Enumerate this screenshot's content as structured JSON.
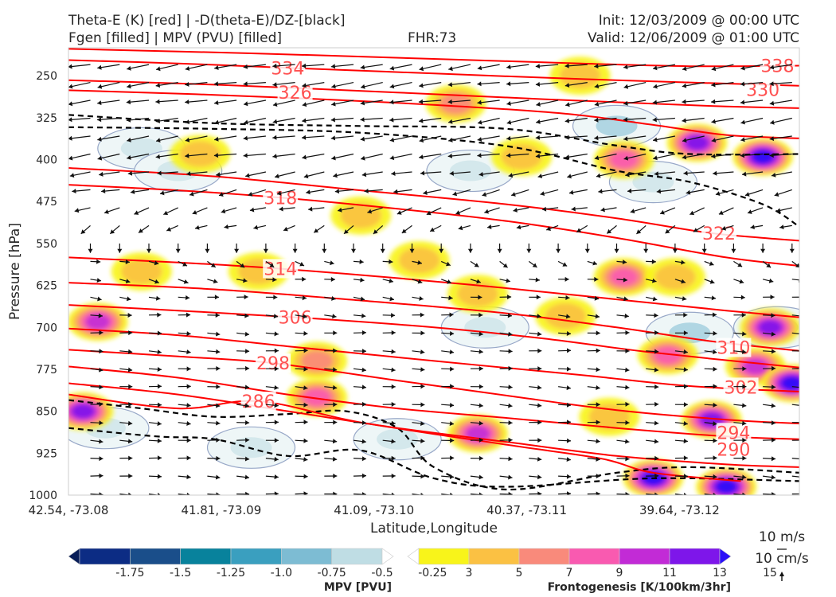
{
  "header": {
    "title_line1": "Theta-E (K) [red] | -D(theta-E)/DZ-[black]",
    "title_line2": "Fgen [filled] | MPV (PVU) [filled]",
    "fhr": "FHR:73",
    "init": "Init: 12/03/2009 @ 00:00 UTC",
    "valid": "Valid: 12/06/2009 @ 01:00 UTC"
  },
  "chart_data": {
    "type": "cross-section",
    "xlabel": "Latitude,Longitude",
    "ylabel": "Pressure [hPa]",
    "x_ticks": [
      "42.54, -73.08",
      "41.81, -73.09",
      "41.09, -73.10",
      "40.37, -73.11",
      "39.64, -73.12"
    ],
    "y_ticks": [
      250,
      325,
      400,
      475,
      550,
      625,
      700,
      775,
      850,
      925,
      1000
    ],
    "ylim": [
      1000,
      200
    ],
    "xlim": [
      0,
      1
    ],
    "theta_e_contours": [
      {
        "label": "338",
        "points": [
          [
            0,
            202
          ],
          [
            0.25,
            210
          ],
          [
            0.5,
            220
          ],
          [
            0.7,
            228
          ],
          [
            0.85,
            233
          ],
          [
            1,
            232
          ]
        ],
        "label_at": [
          0.97,
          232
        ]
      },
      {
        "label": "334",
        "points": [
          [
            0,
            222
          ],
          [
            0.15,
            228
          ],
          [
            0.3,
            236
          ],
          [
            0.5,
            246
          ],
          [
            0.7,
            256
          ],
          [
            0.85,
            262
          ],
          [
            1,
            268
          ]
        ],
        "label_at": [
          0.3,
          236
        ]
      },
      {
        "label": "330",
        "points": [
          [
            0,
            258
          ],
          [
            0.2,
            266
          ],
          [
            0.45,
            280
          ],
          [
            0.65,
            292
          ],
          [
            0.8,
            300
          ],
          [
            0.9,
            305
          ],
          [
            1,
            308
          ]
        ],
        "label_at": [
          0.95,
          275
        ]
      },
      {
        "label": "326",
        "points": [
          [
            0,
            276
          ],
          [
            0.15,
            282
          ],
          [
            0.31,
            290
          ],
          [
            0.5,
            302
          ],
          [
            0.68,
            318
          ],
          [
            0.8,
            338
          ],
          [
            0.9,
            356
          ],
          [
            1,
            362
          ]
        ],
        "label_at": [
          0.31,
          280
        ]
      },
      {
        "label": "322",
        "points": [
          [
            0,
            415
          ],
          [
            0.2,
            430
          ],
          [
            0.4,
            455
          ],
          [
            0.6,
            480
          ],
          [
            0.75,
            505
          ],
          [
            0.87,
            530
          ],
          [
            0.95,
            540
          ],
          [
            1,
            545
          ]
        ],
        "label_at": [
          0.89,
          532
        ]
      },
      {
        "label": "318",
        "points": [
          [
            0,
            445
          ],
          [
            0.15,
            455
          ],
          [
            0.29,
            468
          ],
          [
            0.45,
            488
          ],
          [
            0.6,
            510
          ],
          [
            0.75,
            540
          ],
          [
            0.9,
            575
          ],
          [
            1,
            590
          ]
        ],
        "label_at": [
          0.29,
          468
        ]
      },
      {
        "label": "314",
        "points": [
          [
            0,
            575
          ],
          [
            0.15,
            584
          ],
          [
            0.29,
            595
          ],
          [
            0.45,
            612
          ],
          [
            0.6,
            630
          ],
          [
            0.75,
            650
          ],
          [
            0.9,
            670
          ],
          [
            1,
            682
          ]
        ],
        "label_at": [
          0.29,
          595
        ]
      },
      {
        "label": "310",
        "points": [
          [
            0,
            620
          ],
          [
            0.2,
            632
          ],
          [
            0.4,
            652
          ],
          [
            0.6,
            675
          ],
          [
            0.75,
            700
          ],
          [
            0.88,
            725
          ],
          [
            1,
            742
          ]
        ],
        "label_at": [
          0.91,
          736
        ]
      },
      {
        "label": "306",
        "points": [
          [
            0,
            660
          ],
          [
            0.15,
            670
          ],
          [
            0.31,
            682
          ],
          [
            0.5,
            700
          ],
          [
            0.65,
            720
          ],
          [
            0.8,
            745
          ],
          [
            1,
            772
          ]
        ],
        "label_at": [
          0.31,
          682
        ]
      },
      {
        "label": "302",
        "points": [
          [
            0,
            702
          ],
          [
            0.15,
            714
          ],
          [
            0.3,
            734
          ],
          [
            0.5,
            760
          ],
          [
            0.7,
            785
          ],
          [
            0.85,
            805
          ],
          [
            1,
            815
          ]
        ],
        "label_at": [
          0.92,
          807
        ]
      },
      {
        "label": "298",
        "points": [
          [
            0,
            740
          ],
          [
            0.15,
            752
          ],
          [
            0.28,
            764
          ],
          [
            0.45,
            795
          ],
          [
            0.6,
            822
          ],
          [
            0.75,
            848
          ],
          [
            0.9,
            865
          ],
          [
            1,
            872
          ]
        ],
        "label_at": [
          0.28,
          764
        ]
      },
      {
        "label": "294",
        "points": [
          [
            0,
            770
          ],
          [
            0.15,
            790
          ],
          [
            0.3,
            820
          ],
          [
            0.45,
            845
          ],
          [
            0.6,
            862
          ],
          [
            0.75,
            880
          ],
          [
            0.9,
            895
          ],
          [
            1,
            900
          ]
        ],
        "label_at": [
          0.91,
          888
        ]
      },
      {
        "label": "290",
        "points": [
          [
            0,
            800
          ],
          [
            0.15,
            820
          ],
          [
            0.3,
            850
          ],
          [
            0.45,
            880
          ],
          [
            0.6,
            905
          ],
          [
            0.75,
            930
          ],
          [
            0.9,
            945
          ],
          [
            1,
            950
          ]
        ],
        "label_at": [
          0.91,
          918
        ]
      },
      {
        "label": "286",
        "points": [
          [
            0,
            820
          ],
          [
            0.15,
            845
          ],
          [
            0.26,
            832
          ],
          [
            0.4,
            870
          ],
          [
            0.6,
            910
          ],
          [
            0.73,
            935
          ],
          [
            0.8,
            960
          ],
          [
            0.92,
            975
          ]
        ],
        "label_at": [
          0.26,
          832
        ]
      }
    ],
    "stability_dashed": [
      {
        "points": [
          [
            0,
            320
          ],
          [
            0.2,
            335
          ],
          [
            0.4,
            340
          ],
          [
            0.6,
            345
          ],
          [
            0.75,
            375
          ],
          [
            0.85,
            390
          ],
          [
            1,
            390
          ]
        ]
      },
      {
        "points": [
          [
            0,
            342
          ],
          [
            0.2,
            345
          ],
          [
            0.4,
            352
          ],
          [
            0.6,
            376
          ],
          [
            0.75,
            420
          ],
          [
            0.85,
            440
          ],
          [
            0.95,
            480
          ],
          [
            1,
            520
          ]
        ]
      },
      {
        "points": [
          [
            0,
            830
          ],
          [
            0.1,
            845
          ],
          [
            0.2,
            860
          ],
          [
            0.3,
            855
          ],
          [
            0.38,
            850
          ],
          [
            0.45,
            880
          ],
          [
            0.5,
            950
          ],
          [
            0.6,
            990
          ],
          [
            0.75,
            960
          ],
          [
            0.85,
            950
          ],
          [
            1,
            960
          ]
        ]
      },
      {
        "points": [
          [
            0,
            880
          ],
          [
            0.12,
            895
          ],
          [
            0.2,
            900
          ],
          [
            0.3,
            930
          ],
          [
            0.4,
            920
          ],
          [
            0.5,
            970
          ],
          [
            0.6,
            985
          ],
          [
            0.8,
            970
          ],
          [
            1,
            975
          ]
        ]
      }
    ],
    "fgen_blobs": [
      {
        "x": 0.04,
        "y": 690,
        "level": 11
      },
      {
        "x": 0.02,
        "y": 850,
        "level": 13
      },
      {
        "x": 0.18,
        "y": 390,
        "level": 5
      },
      {
        "x": 0.26,
        "y": 600,
        "level": 5
      },
      {
        "x": 0.34,
        "y": 760,
        "level": 7
      },
      {
        "x": 0.34,
        "y": 825,
        "level": 9
      },
      {
        "x": 0.4,
        "y": 500,
        "level": 5
      },
      {
        "x": 0.48,
        "y": 580,
        "level": 5
      },
      {
        "x": 0.56,
        "y": 640,
        "level": 5
      },
      {
        "x": 0.56,
        "y": 890,
        "level": 11
      },
      {
        "x": 0.62,
        "y": 395,
        "level": 5
      },
      {
        "x": 0.68,
        "y": 680,
        "level": 5
      },
      {
        "x": 0.7,
        "y": 250,
        "level": 5
      },
      {
        "x": 0.74,
        "y": 860,
        "level": 5
      },
      {
        "x": 0.76,
        "y": 400,
        "level": 9
      },
      {
        "x": 0.76,
        "y": 610,
        "level": 9
      },
      {
        "x": 0.8,
        "y": 970,
        "level": 15
      },
      {
        "x": 0.82,
        "y": 750,
        "level": 9
      },
      {
        "x": 0.83,
        "y": 610,
        "level": 5
      },
      {
        "x": 0.88,
        "y": 865,
        "level": 13
      },
      {
        "x": 0.9,
        "y": 985,
        "level": 15
      },
      {
        "x": 0.94,
        "y": 770,
        "level": 11
      },
      {
        "x": 0.96,
        "y": 700,
        "level": 13
      },
      {
        "x": 0.95,
        "y": 395,
        "level": 15
      },
      {
        "x": 0.86,
        "y": 370,
        "level": 13
      },
      {
        "x": 0.99,
        "y": 800,
        "level": 15
      },
      {
        "x": 0.53,
        "y": 300,
        "level": 7
      },
      {
        "x": 0.1,
        "y": 600,
        "level": 5
      }
    ],
    "mpv_blobs": [
      {
        "x": 0.1,
        "y": 380,
        "level": -0.25
      },
      {
        "x": 0.15,
        "y": 420,
        "level": -0.25
      },
      {
        "x": 0.55,
        "y": 420,
        "level": -0.25
      },
      {
        "x": 0.8,
        "y": 440,
        "level": -0.25
      },
      {
        "x": 0.75,
        "y": 340,
        "level": -0.5
      },
      {
        "x": 0.85,
        "y": 710,
        "level": -0.5
      },
      {
        "x": 0.97,
        "y": 700,
        "level": -0.75
      },
      {
        "x": 0.57,
        "y": 700,
        "level": -0.25
      },
      {
        "x": 0.05,
        "y": 880,
        "level": -0.25
      },
      {
        "x": 0.25,
        "y": 915,
        "level": -0.25
      },
      {
        "x": 0.45,
        "y": 900,
        "level": -0.25
      }
    ],
    "wind_arrows": {
      "region_upper_dir": [
        -1,
        0.15
      ],
      "region_lower_dir": [
        1,
        0.05
      ]
    },
    "mpv_colorbar": {
      "label": "MPV [PVU]",
      "ticks": [
        "-1.75",
        "-1.5",
        "-1.25",
        "-1.0",
        "-0.75",
        "-0.5",
        "-0.25"
      ],
      "colors": [
        "#081d58",
        "#0c2c84",
        "#1a4e8a",
        "#08829c",
        "#3a9fbf",
        "#7dbcd3",
        "#bfdde4",
        "#ffffff"
      ]
    },
    "fgen_colorbar": {
      "label": "Frontogenesis [K/100km/3hr]",
      "ticks": [
        "3",
        "5",
        "7",
        "9",
        "11",
        "13",
        "15"
      ],
      "colors": [
        "#ffffff",
        "#f8f41a",
        "#fbc143",
        "#f98a7b",
        "#f95ab0",
        "#c22bd6",
        "#7e16ea",
        "#2c10f8"
      ]
    },
    "wind_keys": [
      "10 m/s",
      "10 cm/s"
    ],
    "colors": {
      "theta_e": "#ff0000",
      "label": "#ff5050",
      "stability": "#000000",
      "mpv_outline": "#98a8c8"
    }
  }
}
